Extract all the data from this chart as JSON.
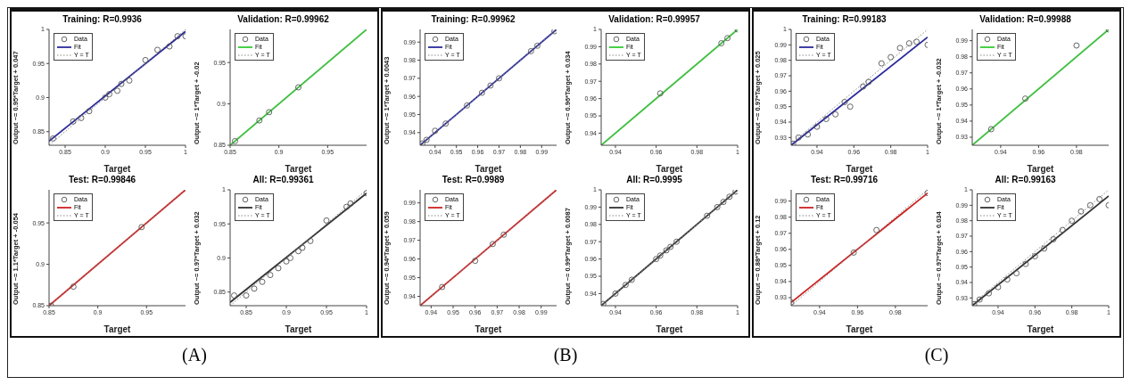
{
  "chart_data": [
    {
      "type": "scatter",
      "title": "Training: R=0.9936",
      "xlabel": "Target",
      "ylabel": "Output ~= 0.95*Target + 0.047",
      "annotations": [
        "(A)"
      ],
      "xlim": [
        0.83,
        1.0
      ],
      "ylim": [
        0.83,
        1.0
      ],
      "xticks": [
        0.85,
        0.9,
        0.95,
        1
      ],
      "yticks": [
        0.85,
        0.9,
        0.95,
        1
      ],
      "legend": "top left",
      "series": [
        {
          "name": "Data",
          "type": "scatter",
          "marker": "circle",
          "color": "#555555",
          "x": [
            0.835,
            0.86,
            0.87,
            0.88,
            0.9,
            0.905,
            0.915,
            0.92,
            0.93,
            0.95,
            0.965,
            0.98,
            0.99,
            1.0
          ],
          "values": [
            0.84,
            0.865,
            0.87,
            0.88,
            0.9,
            0.905,
            0.91,
            0.92,
            0.925,
            0.955,
            0.97,
            0.975,
            0.99,
            0.99
          ]
        },
        {
          "name": "Fit",
          "type": "line",
          "color": "#2a2a9c",
          "x": [
            0.83,
            1.0
          ],
          "values": [
            0.836,
            0.997
          ]
        },
        {
          "name": "Y = T",
          "type": "line",
          "line_style": "dotted",
          "color": "#888888",
          "x": [
            0.83,
            1.0
          ],
          "values": [
            0.83,
            1.0
          ]
        }
      ]
    },
    {
      "type": "scatter",
      "title": "Validation: R=0.99962",
      "xlabel": "Target",
      "ylabel": "Output ~= 1*Target + -0.02",
      "xlim": [
        0.85,
        0.99
      ],
      "ylim": [
        0.85,
        0.99
      ],
      "xticks": [
        0.85,
        0.9,
        0.95
      ],
      "yticks": [
        0.85,
        0.9,
        0.95
      ],
      "legend": "top left",
      "series": [
        {
          "name": "Data",
          "type": "scatter",
          "marker": "circle",
          "color": "#555555",
          "x": [
            0.855,
            0.88,
            0.89,
            0.92
          ],
          "values": [
            0.855,
            0.88,
            0.89,
            0.92
          ]
        },
        {
          "name": "Fit",
          "type": "line",
          "color": "#33cc33",
          "x": [
            0.85,
            0.99
          ],
          "values": [
            0.85,
            0.99
          ]
        },
        {
          "name": "Y = T",
          "type": "line",
          "line_style": "dotted",
          "color": "#888888",
          "x": [
            0.85,
            0.99
          ],
          "values": [
            0.85,
            0.99
          ]
        }
      ]
    },
    {
      "type": "scatter",
      "title": "Test: R=0.99846",
      "xlabel": "Target",
      "ylabel": "Output ~= 1.1*Target + -0.054",
      "xlim": [
        0.85,
        0.99
      ],
      "ylim": [
        0.85,
        0.99
      ],
      "xticks": [
        0.85,
        0.9,
        0.95
      ],
      "yticks": [
        0.85,
        0.9,
        0.95
      ],
      "legend": "top left",
      "series": [
        {
          "name": "Data",
          "type": "scatter",
          "marker": "circle",
          "color": "#555555",
          "x": [
            0.852,
            0.875,
            0.945
          ],
          "values": [
            0.85,
            0.873,
            0.945
          ]
        },
        {
          "name": "Fit",
          "type": "line",
          "color": "#cc2222",
          "x": [
            0.85,
            0.99
          ],
          "values": [
            0.85,
            0.99
          ]
        },
        {
          "name": "Y = T",
          "type": "line",
          "line_style": "dotted",
          "color": "#888888",
          "x": [
            0.85,
            0.99
          ],
          "values": [
            0.85,
            0.99
          ]
        }
      ]
    },
    {
      "type": "scatter",
      "title": "All: R=0.99361",
      "xlabel": "Target",
      "ylabel": "Output ~= 0.97*Target + 0.032",
      "xlim": [
        0.83,
        1.0
      ],
      "ylim": [
        0.83,
        1.0
      ],
      "xticks": [
        0.85,
        0.9,
        0.95,
        1
      ],
      "yticks": [
        0.85,
        0.9,
        0.95,
        1
      ],
      "legend": "top left",
      "series": [
        {
          "name": "Data",
          "type": "scatter",
          "marker": "circle",
          "color": "#555555",
          "x": [
            0.835,
            0.85,
            0.86,
            0.87,
            0.88,
            0.89,
            0.9,
            0.905,
            0.915,
            0.92,
            0.93,
            0.95,
            0.975,
            0.98,
            1.0
          ],
          "values": [
            0.845,
            0.845,
            0.855,
            0.865,
            0.875,
            0.885,
            0.895,
            0.9,
            0.91,
            0.915,
            0.925,
            0.955,
            0.975,
            0.98,
            0.995
          ]
        },
        {
          "name": "Fit",
          "type": "line",
          "color": "#333333",
          "x": [
            0.83,
            1.0
          ],
          "values": [
            0.835,
            0.995
          ]
        },
        {
          "name": "Y = T",
          "type": "line",
          "line_style": "dotted",
          "color": "#888888",
          "x": [
            0.83,
            1.0
          ],
          "values": [
            0.83,
            1.0
          ]
        }
      ]
    },
    {
      "type": "scatter",
      "title": "Training: R=0.99962",
      "xlabel": "Target",
      "ylabel": "Output ~= 1*Target + 0.0043",
      "annotations": [
        "(B)"
      ],
      "xlim": [
        0.933,
        0.997
      ],
      "ylim": [
        0.933,
        0.997
      ],
      "xticks": [
        0.94,
        0.95,
        0.96,
        0.97,
        0.98,
        0.99
      ],
      "yticks": [
        0.94,
        0.95,
        0.96,
        0.97,
        0.98,
        0.99
      ],
      "legend": "top left",
      "series": [
        {
          "name": "Data",
          "type": "scatter",
          "marker": "circle",
          "color": "#555555",
          "x": [
            0.934,
            0.936,
            0.94,
            0.945,
            0.955,
            0.962,
            0.966,
            0.97,
            0.985,
            0.988,
            0.996
          ],
          "values": [
            0.934,
            0.936,
            0.941,
            0.945,
            0.955,
            0.962,
            0.966,
            0.97,
            0.985,
            0.988,
            0.996
          ]
        },
        {
          "name": "Fit",
          "type": "line",
          "color": "#2a2a9c",
          "x": [
            0.933,
            0.997
          ],
          "values": [
            0.933,
            0.997
          ]
        },
        {
          "name": "Y = T",
          "type": "line",
          "line_style": "dotted",
          "color": "#888888",
          "x": [
            0.933,
            0.997
          ],
          "values": [
            0.933,
            0.997
          ]
        }
      ]
    },
    {
      "type": "scatter",
      "title": "Validation: R=0.99957",
      "xlabel": "Target",
      "ylabel": "Output ~= 0.96*Target + 0.034",
      "xlim": [
        0.933,
        1.0
      ],
      "ylim": [
        0.933,
        1.0
      ],
      "xticks": [
        0.94,
        0.96,
        0.98,
        1
      ],
      "yticks": [
        0.94,
        0.95,
        0.96,
        0.97,
        0.98,
        0.99,
        1
      ],
      "legend": "top left",
      "series": [
        {
          "name": "Data",
          "type": "scatter",
          "marker": "circle",
          "color": "#555555",
          "x": [
            0.962,
            0.992,
            0.995,
            1.0
          ],
          "values": [
            0.963,
            0.992,
            0.995,
            1.0
          ]
        },
        {
          "name": "Fit",
          "type": "line",
          "color": "#33cc33",
          "x": [
            0.933,
            1.0
          ],
          "values": [
            0.933,
            1.0
          ]
        },
        {
          "name": "Y = T",
          "type": "line",
          "line_style": "dotted",
          "color": "#888888",
          "x": [
            0.933,
            1.0
          ],
          "values": [
            0.933,
            1.0
          ]
        }
      ]
    },
    {
      "type": "scatter",
      "title": "Test: R=0.9989",
      "xlabel": "Target",
      "ylabel": "Output ~= 0.94*Target + 0.059",
      "xlim": [
        0.935,
        0.997
      ],
      "ylim": [
        0.935,
        0.997
      ],
      "xticks": [
        0.94,
        0.95,
        0.96,
        0.97,
        0.98,
        0.99
      ],
      "yticks": [
        0.94,
        0.95,
        0.96,
        0.97,
        0.98,
        0.99
      ],
      "legend": "top left",
      "series": [
        {
          "name": "Data",
          "type": "scatter",
          "marker": "circle",
          "color": "#555555",
          "x": [
            0.945,
            0.96,
            0.968,
            0.973
          ],
          "values": [
            0.945,
            0.959,
            0.968,
            0.973
          ]
        },
        {
          "name": "Fit",
          "type": "line",
          "color": "#cc2222",
          "x": [
            0.935,
            0.997
          ],
          "values": [
            0.935,
            0.997
          ]
        },
        {
          "name": "Y = T",
          "type": "line",
          "line_style": "dotted",
          "color": "#888888",
          "x": [
            0.935,
            0.997
          ],
          "values": [
            0.935,
            0.997
          ]
        }
      ]
    },
    {
      "type": "scatter",
      "title": "All: R=0.9995",
      "xlabel": "Target",
      "ylabel": "Output ~= 0.99*Target + 0.0087",
      "xlim": [
        0.933,
        1.0
      ],
      "ylim": [
        0.933,
        1.0
      ],
      "xticks": [
        0.94,
        0.96,
        0.98,
        1
      ],
      "yticks": [
        0.94,
        0.95,
        0.96,
        0.97,
        0.98,
        0.99,
        1
      ],
      "legend": "top left",
      "series": [
        {
          "name": "Data",
          "type": "scatter",
          "marker": "circle",
          "color": "#555555",
          "x": [
            0.934,
            0.94,
            0.945,
            0.948,
            0.96,
            0.962,
            0.965,
            0.967,
            0.97,
            0.985,
            0.99,
            0.993,
            0.996,
            0.999
          ],
          "values": [
            0.934,
            0.94,
            0.945,
            0.948,
            0.96,
            0.962,
            0.965,
            0.967,
            0.97,
            0.985,
            0.99,
            0.993,
            0.996,
            0.999
          ]
        },
        {
          "name": "Fit",
          "type": "line",
          "color": "#333333",
          "x": [
            0.933,
            1.0
          ],
          "values": [
            0.933,
            1.0
          ]
        },
        {
          "name": "Y = T",
          "type": "line",
          "line_style": "dotted",
          "color": "#888888",
          "x": [
            0.933,
            1.0
          ],
          "values": [
            0.933,
            1.0
          ]
        }
      ]
    },
    {
      "type": "scatter",
      "title": "Training: R=0.99183",
      "xlabel": "Target",
      "ylabel": "Output ~= 0.97*Target + 0.025",
      "annotations": [
        "(C)"
      ],
      "xlim": [
        0.926,
        1.0
      ],
      "ylim": [
        0.925,
        1.0
      ],
      "xticks": [
        0.94,
        0.96,
        0.98,
        1
      ],
      "yticks": [
        0.93,
        0.94,
        0.95,
        0.96,
        0.97,
        0.98,
        0.99,
        1
      ],
      "legend": "top left",
      "series": [
        {
          "name": "Data",
          "type": "scatter",
          "marker": "circle",
          "color": "#555555",
          "x": [
            0.927,
            0.93,
            0.935,
            0.94,
            0.945,
            0.95,
            0.955,
            0.958,
            0.965,
            0.968,
            0.975,
            0.98,
            0.985,
            0.99,
            0.994,
            1.0
          ],
          "values": [
            0.926,
            0.93,
            0.932,
            0.937,
            0.942,
            0.945,
            0.953,
            0.95,
            0.963,
            0.966,
            0.978,
            0.982,
            0.988,
            0.991,
            0.992,
            0.99
          ]
        },
        {
          "name": "Fit",
          "type": "line",
          "color": "#2a2a9c",
          "x": [
            0.926,
            1.0
          ],
          "values": [
            0.925,
            0.995
          ]
        },
        {
          "name": "Y = T",
          "type": "line",
          "line_style": "dotted",
          "color": "#888888",
          "x": [
            0.926,
            1.0
          ],
          "values": [
            0.926,
            1.0
          ]
        }
      ]
    },
    {
      "type": "scatter",
      "title": "Validation: R=0.99988",
      "xlabel": "Target",
      "ylabel": "Output ~= 1*Target + -0.032",
      "xlim": [
        0.925,
        0.997
      ],
      "ylim": [
        0.925,
        0.997
      ],
      "xticks": [
        0.94,
        0.96,
        0.98
      ],
      "yticks": [
        0.93,
        0.94,
        0.95,
        0.96,
        0.97,
        0.98,
        0.99
      ],
      "legend": "top left",
      "series": [
        {
          "name": "Data",
          "type": "scatter",
          "marker": "circle",
          "color": "#555555",
          "x": [
            0.935,
            0.953,
            0.98,
            0.997
          ],
          "values": [
            0.935,
            0.954,
            0.987,
            0.997
          ]
        },
        {
          "name": "Fit",
          "type": "line",
          "color": "#33cc33",
          "x": [
            0.925,
            0.997
          ],
          "values": [
            0.925,
            0.997
          ]
        },
        {
          "name": "Y = T",
          "type": "line",
          "line_style": "dotted",
          "color": "#888888",
          "x": [
            0.925,
            0.997
          ],
          "values": [
            0.925,
            0.997
          ]
        }
      ]
    },
    {
      "type": "scatter",
      "title": "Test: R=0.99716",
      "xlabel": "Target",
      "ylabel": "Output ~= 0.88*Target + 0.12",
      "xlim": [
        0.925,
        0.997
      ],
      "ylim": [
        0.925,
        0.997
      ],
      "xticks": [
        0.94,
        0.96,
        0.98
      ],
      "yticks": [
        0.93,
        0.94,
        0.95,
        0.96,
        0.97,
        0.98,
        0.99
      ],
      "legend": "top left",
      "series": [
        {
          "name": "Data",
          "type": "scatter",
          "marker": "circle",
          "color": "#555555",
          "x": [
            0.925,
            0.958,
            0.97,
            0.997
          ],
          "values": [
            0.927,
            0.958,
            0.972,
            0.995
          ]
        },
        {
          "name": "Fit",
          "type": "line",
          "color": "#cc2222",
          "x": [
            0.925,
            0.997
          ],
          "values": [
            0.927,
            0.995
          ]
        },
        {
          "name": "Y = T",
          "type": "line",
          "line_style": "dotted",
          "color": "#888888",
          "x": [
            0.925,
            0.997
          ],
          "values": [
            0.925,
            0.997
          ]
        }
      ]
    },
    {
      "type": "scatter",
      "title": "All: R=0.99163",
      "xlabel": "Target",
      "ylabel": "Output ~= 0.97*Target + 0.034",
      "xlim": [
        0.926,
        1.0
      ],
      "ylim": [
        0.925,
        1.0
      ],
      "xticks": [
        0.94,
        0.96,
        0.98,
        1
      ],
      "yticks": [
        0.93,
        0.94,
        0.95,
        0.96,
        0.97,
        0.98,
        0.99,
        1
      ],
      "legend": "top left",
      "series": [
        {
          "name": "Data",
          "type": "scatter",
          "marker": "circle",
          "color": "#555555",
          "x": [
            0.927,
            0.93,
            0.935,
            0.94,
            0.945,
            0.95,
            0.955,
            0.96,
            0.965,
            0.97,
            0.975,
            0.98,
            0.985,
            0.99,
            0.995,
            1.0
          ],
          "values": [
            0.926,
            0.929,
            0.933,
            0.937,
            0.942,
            0.946,
            0.952,
            0.957,
            0.962,
            0.968,
            0.974,
            0.98,
            0.986,
            0.99,
            0.994,
            0.99
          ]
        },
        {
          "name": "Fit",
          "type": "line",
          "color": "#333333",
          "x": [
            0.926,
            1.0
          ],
          "values": [
            0.925,
            0.996
          ]
        },
        {
          "name": "Y = T",
          "type": "line",
          "line_style": "dotted",
          "color": "#888888",
          "x": [
            0.926,
            1.0
          ],
          "values": [
            0.926,
            1.0
          ]
        }
      ]
    }
  ]
}
